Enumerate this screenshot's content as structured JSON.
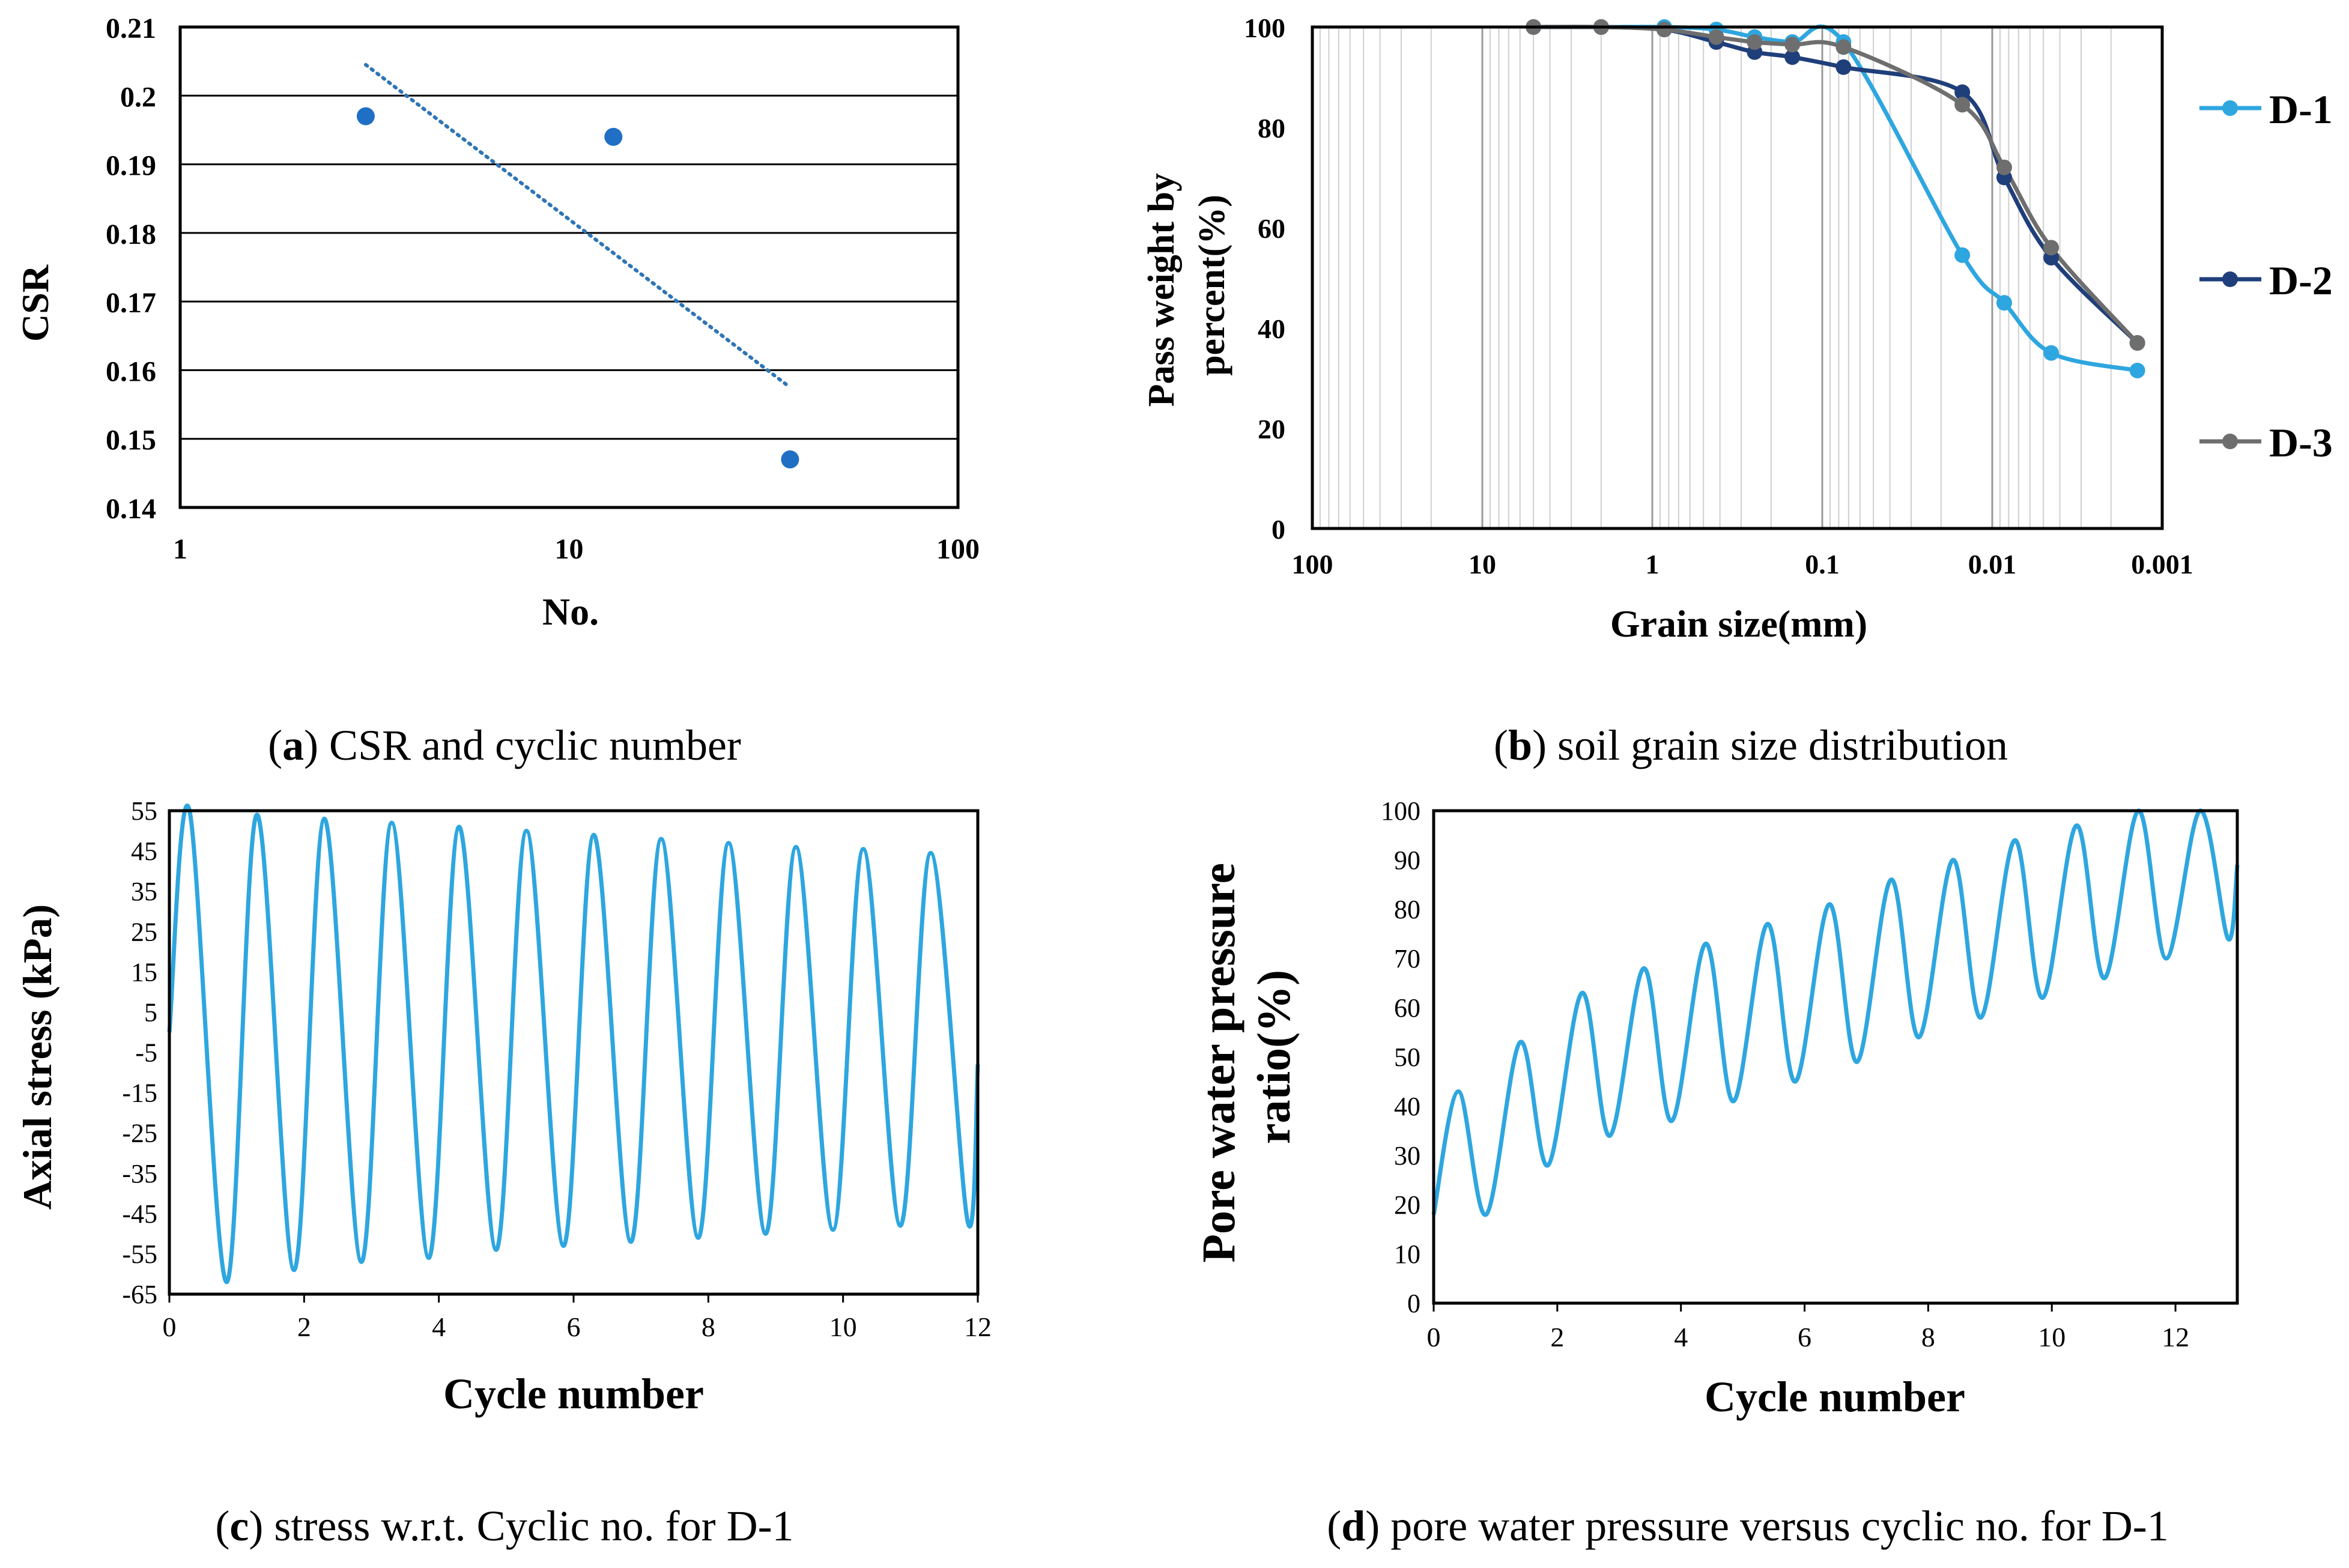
{
  "colors": {
    "axis": "#000000",
    "grid_major": "#000000",
    "grid_minor": "#cfcfcf",
    "scatter": "#1f6fc5",
    "trend": "#2e75b6",
    "d1": "#2ea6df",
    "d2": "#1f3f7a",
    "d3": "#6e6e6e",
    "cyclic": "#2ea6df"
  },
  "chart_data": [
    {
      "id": "a",
      "type": "scatter",
      "caption_letter": "a",
      "caption_text": " CSR and cyclic number",
      "xlabel": "No.",
      "ylabel": "CSR",
      "xscale": "log",
      "xlim": [
        1,
        100
      ],
      "ylim": [
        0.14,
        0.21
      ],
      "xticks": [
        1,
        10,
        100
      ],
      "xtick_labels": [
        "1",
        "10",
        "100"
      ],
      "yticks": [
        0.14,
        0.15,
        0.16,
        0.17,
        0.18,
        0.19,
        0.2,
        0.21
      ],
      "ytick_labels": [
        "0.14",
        "0.15",
        "0.16",
        "0.17",
        "0.18",
        "0.19",
        "0.2",
        "0.21"
      ],
      "grid": "horizontal",
      "points": [
        {
          "x": 3,
          "y": 0.197
        },
        {
          "x": 13,
          "y": 0.194
        },
        {
          "x": 37,
          "y": 0.147
        }
      ],
      "trendline": {
        "style": "dotted",
        "x": [
          3,
          37
        ],
        "y": [
          0.2045,
          0.1575
        ]
      }
    },
    {
      "id": "b",
      "type": "line",
      "caption_letter": "b",
      "caption_text": " soil grain size distribution",
      "xlabel": "Grain size(mm)",
      "ylabel": "Pass weight by percent(%)",
      "ylabel_lines": [
        "Pass weight by",
        "percent(%)"
      ],
      "xscale": "log",
      "x_reversed": true,
      "xlim": [
        100,
        0.001
      ],
      "ylim": [
        0,
        100
      ],
      "xticks": [
        100,
        10,
        1,
        0.1,
        0.01,
        0.001
      ],
      "xtick_labels": [
        "100",
        "10",
        "1",
        "0.1",
        "0.01",
        "0.001"
      ],
      "yticks": [
        0,
        20,
        40,
        60,
        80,
        100
      ],
      "ytick_labels": [
        "0",
        "20",
        "40",
        "60",
        "80",
        "100"
      ],
      "grid": "log-minor",
      "legend_position": "right",
      "series": [
        {
          "name": "D-1",
          "x": [
            5,
            2,
            0.85,
            0.42,
            0.25,
            0.15,
            0.075,
            0.015,
            0.0085,
            0.0045,
            0.0014
          ],
          "y": [
            100,
            100,
            100,
            99.5,
            98,
            97,
            97,
            54.5,
            45,
            35,
            31.5
          ]
        },
        {
          "name": "D-2",
          "x": [
            5,
            2,
            0.85,
            0.42,
            0.25,
            0.15,
            0.075,
            0.015,
            0.0085,
            0.0045,
            0.0014
          ],
          "y": [
            100,
            100,
            99.5,
            97,
            95,
            94,
            92,
            87,
            70,
            54,
            37
          ]
        },
        {
          "name": "D-3",
          "x": [
            5,
            2,
            0.85,
            0.42,
            0.25,
            0.15,
            0.075,
            0.015,
            0.0085,
            0.0045,
            0.0014
          ],
          "y": [
            100,
            100,
            99.5,
            98,
            97,
            96.5,
            96,
            84.5,
            72,
            56,
            37
          ]
        }
      ]
    },
    {
      "id": "c",
      "type": "line",
      "caption_letter": "c",
      "caption_text": " stress w.r.t. Cyclic no. for D-1",
      "xlabel": "Cycle number",
      "ylabel": "Axial stress (kPa)",
      "xlim": [
        0,
        12
      ],
      "ylim": [
        -65,
        55
      ],
      "xticks": [
        0,
        2,
        4,
        6,
        8,
        10,
        12
      ],
      "xtick_labels": [
        "0",
        "2",
        "4",
        "6",
        "8",
        "10",
        "12"
      ],
      "yticks": [
        55,
        45,
        35,
        25,
        15,
        5,
        -5,
        -15,
        -25,
        -35,
        -45,
        -55,
        -65
      ],
      "ytick_labels": [
        "55",
        "45",
        "35",
        "25",
        "15",
        "5",
        "-5",
        "-15",
        "-25",
        "-35",
        "-45",
        "-55",
        "-65"
      ],
      "grid": "none",
      "series": [
        {
          "name": "",
          "x": [
            0,
            0.3,
            0.85,
            1.3,
            1.85,
            2.3,
            2.85,
            3.3,
            3.85,
            4.3,
            4.85,
            5.3,
            5.85,
            6.3,
            6.85,
            7.3,
            7.85,
            8.3,
            8.85,
            9.3,
            9.85,
            10.3,
            10.85,
            11.3,
            11.85,
            12
          ],
          "y": [
            0,
            55,
            -62,
            54,
            -59,
            53,
            -57,
            52,
            -56,
            51,
            -54,
            50,
            -53,
            49,
            -52,
            48,
            -51,
            47,
            -50,
            46,
            -49,
            45.5,
            -48,
            44.5,
            -47,
            -8
          ]
        }
      ]
    },
    {
      "id": "d",
      "type": "line",
      "caption_letter": "d",
      "caption_text": " pore water pressure versus cyclic no. for D-1",
      "xlabel": "Cycle number",
      "ylabel": "Pore  water pressure ratio(%)",
      "ylabel_lines": [
        "Pore  water pressure",
        "ratio(%)"
      ],
      "xlim": [
        0,
        13
      ],
      "ylim": [
        0,
        100
      ],
      "xticks": [
        0,
        2,
        4,
        6,
        8,
        10,
        12
      ],
      "xtick_labels": [
        "0",
        "2",
        "4",
        "6",
        "8",
        "10",
        "12"
      ],
      "yticks": [
        0,
        10,
        20,
        30,
        40,
        50,
        60,
        70,
        80,
        90,
        100
      ],
      "ytick_labels": [
        "0",
        "10",
        "20",
        "30",
        "40",
        "50",
        "60",
        "70",
        "80",
        "90",
        "100"
      ],
      "grid": "none",
      "series": [
        {
          "name": "",
          "x": [
            0,
            0.4,
            0.85,
            1.4,
            1.85,
            2.4,
            2.85,
            3.4,
            3.85,
            4.4,
            4.85,
            5.4,
            5.85,
            6.4,
            6.85,
            7.4,
            7.85,
            8.4,
            8.85,
            9.4,
            9.85,
            10.4,
            10.85,
            11.4,
            11.85,
            12.4,
            12.85,
            13
          ],
          "y": [
            18,
            43,
            18,
            53,
            28,
            63,
            34,
            68,
            37,
            73,
            41,
            77,
            45,
            81,
            49,
            86,
            54,
            90,
            58,
            94,
            62,
            97,
            66,
            100,
            70,
            100,
            74,
            89
          ]
        }
      ]
    }
  ]
}
